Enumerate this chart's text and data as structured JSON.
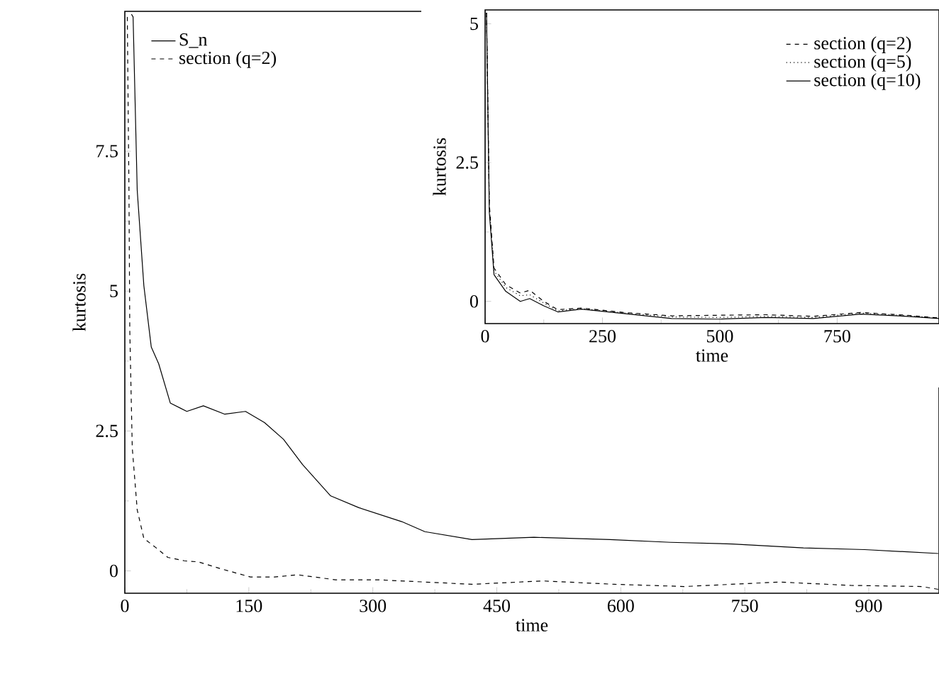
{
  "chart_data": [
    {
      "type": "line",
      "xlabel": "time",
      "ylabel": "kurtosis",
      "xlim": [
        0,
        985
      ],
      "ylim": [
        -0.4,
        10
      ],
      "xticks": [
        0,
        150,
        300,
        450,
        600,
        750,
        900
      ],
      "yticks": [
        0,
        2.5,
        5,
        7.5
      ],
      "legend": "top left",
      "series": [
        {
          "name": "S_n",
          "color": "#000000",
          "line_style": "solid",
          "x": [
            8,
            10,
            15,
            23,
            32,
            41,
            55,
            75,
            95,
            121,
            146,
            169,
            192,
            215,
            249,
            283,
            335,
            363,
            420,
            495,
            587,
            660,
            735,
            821,
            895,
            984
          ],
          "values": [
            9.95,
            9.9,
            6.8,
            5.1,
            4.0,
            3.7,
            3.0,
            2.85,
            2.95,
            2.8,
            2.85,
            2.65,
            2.35,
            1.9,
            1.34,
            1.13,
            0.88,
            0.7,
            0.56,
            0.6,
            0.56,
            0.51,
            0.48,
            0.41,
            0.38,
            0.31
          ]
        },
        {
          "name": "section (q=2)",
          "color": "#000000",
          "line_style": "dashed",
          "x": [
            3,
            5,
            6,
            9,
            15,
            23,
            38,
            52,
            72,
            89,
            118,
            152,
            181,
            209,
            255,
            306,
            363,
            420,
            506,
            592,
            677,
            792,
            878,
            964,
            984
          ],
          "values": [
            9.9,
            6.8,
            4.3,
            2.2,
            1.09,
            0.58,
            0.41,
            0.24,
            0.18,
            0.16,
            0.03,
            -0.11,
            -0.11,
            -0.07,
            -0.16,
            -0.16,
            -0.2,
            -0.24,
            -0.18,
            -0.24,
            -0.28,
            -0.2,
            -0.26,
            -0.28,
            -0.33
          ]
        }
      ]
    },
    {
      "type": "line",
      "xlabel": "time",
      "ylabel": "kurtosis",
      "xlim": [
        0,
        967
      ],
      "ylim": [
        -0.4,
        5.25
      ],
      "xticks": [
        0,
        250,
        500,
        750
      ],
      "yticks": [
        0,
        2.5,
        5
      ],
      "legend": "top right",
      "series": [
        {
          "name": "section (q=2)",
          "color": "#000000",
          "line_style": "dashed",
          "x": [
            3,
            9,
            19,
            44,
            75,
            95,
            125,
            155,
            205,
            296,
            397,
            497,
            598,
            699,
            800,
            900,
            967
          ],
          "values": [
            5.2,
            1.75,
            0.6,
            0.3,
            0.15,
            0.2,
            0.0,
            -0.15,
            -0.12,
            -0.2,
            -0.26,
            -0.25,
            -0.24,
            -0.27,
            -0.2,
            -0.25,
            -0.3
          ]
        },
        {
          "name": "section (q=5)",
          "color": "#000000",
          "line_style": "dotted",
          "x": [
            3,
            9,
            19,
            44,
            75,
            95,
            125,
            155,
            205,
            296,
            397,
            497,
            598,
            699,
            800,
            900,
            967
          ],
          "values": [
            5.2,
            1.7,
            0.55,
            0.25,
            0.1,
            0.12,
            -0.03,
            -0.17,
            -0.13,
            -0.21,
            -0.28,
            -0.29,
            -0.27,
            -0.29,
            -0.21,
            -0.26,
            -0.3
          ]
        },
        {
          "name": "section (q=10)",
          "color": "#000000",
          "line_style": "solid",
          "x": [
            3,
            9,
            19,
            44,
            75,
            95,
            125,
            155,
            205,
            296,
            397,
            497,
            598,
            699,
            800,
            900,
            967
          ],
          "values": [
            5.2,
            1.6,
            0.48,
            0.18,
            0.0,
            0.05,
            -0.08,
            -0.19,
            -0.14,
            -0.22,
            -0.31,
            -0.32,
            -0.29,
            -0.31,
            -0.23,
            -0.27,
            -0.31
          ]
        }
      ]
    }
  ]
}
